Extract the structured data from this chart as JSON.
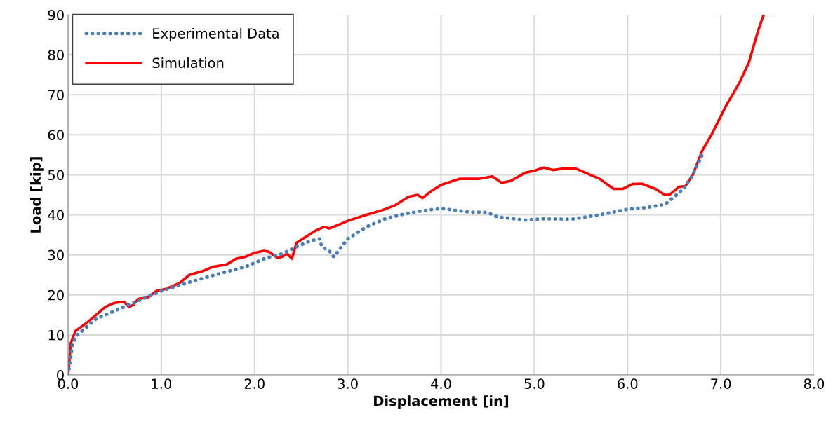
{
  "chart_data": {
    "type": "line",
    "xlabel": "Displacement [in]",
    "ylabel": "Load [kip]",
    "xlim": [
      0,
      8
    ],
    "ylim": [
      0,
      90
    ],
    "xticks": [
      {
        "value": 0,
        "label": "0.0"
      },
      {
        "value": 1,
        "label": "1.0"
      },
      {
        "value": 2,
        "label": "2.0"
      },
      {
        "value": 3,
        "label": "3.0"
      },
      {
        "value": 4,
        "label": "4.0"
      },
      {
        "value": 5,
        "label": "5.0"
      },
      {
        "value": 6,
        "label": "6.0"
      },
      {
        "value": 7,
        "label": "7.0"
      },
      {
        "value": 8,
        "label": "8.0"
      }
    ],
    "yticks": [
      0,
      10,
      20,
      30,
      40,
      50,
      60,
      70,
      80,
      90
    ],
    "grid": true,
    "legend": "top left",
    "series": [
      {
        "name": "Experimental Data",
        "color": "#4a7ebb",
        "line_style": "dotted",
        "x": [
          0,
          0.02,
          0.05,
          0.1,
          0.2,
          0.3,
          0.5,
          0.7,
          0.9,
          1.0,
          1.2,
          1.5,
          1.7,
          1.9,
          2.1,
          2.3,
          2.45,
          2.6,
          2.7,
          2.72,
          2.8,
          2.85,
          2.9,
          3.0,
          3.2,
          3.4,
          3.6,
          3.8,
          4.0,
          4.3,
          4.5,
          4.6,
          4.9,
          5.1,
          5.4,
          5.7,
          6.0,
          6.2,
          6.4,
          6.5,
          6.6,
          6.7,
          6.8
        ],
        "values": [
          0,
          3,
          8,
          10,
          12,
          14,
          16,
          18,
          20,
          21,
          22.5,
          24.5,
          25.8,
          27,
          29,
          30.3,
          32,
          33.5,
          34,
          32,
          31,
          29.5,
          31,
          34,
          37,
          39,
          40.2,
          41,
          41.6,
          40.7,
          40.6,
          39.5,
          38.7,
          39,
          38.9,
          40,
          41.4,
          41.8,
          42.6,
          44.5,
          46.5,
          50,
          55
        ]
      },
      {
        "name": "Simulation",
        "color": "#ff0000",
        "line_style": "solid",
        "x": [
          0,
          0.03,
          0.08,
          0.2,
          0.3,
          0.4,
          0.5,
          0.6,
          0.65,
          0.7,
          0.75,
          0.85,
          0.95,
          1.05,
          1.2,
          1.3,
          1.45,
          1.55,
          1.7,
          1.8,
          1.9,
          2.0,
          2.1,
          2.15,
          2.25,
          2.3,
          2.35,
          2.4,
          2.45,
          2.55,
          2.65,
          2.75,
          2.8,
          2.9,
          3.0,
          3.2,
          3.35,
          3.5,
          3.65,
          3.75,
          3.8,
          3.9,
          4.0,
          4.2,
          4.4,
          4.55,
          4.65,
          4.75,
          4.9,
          5.0,
          5.1,
          5.2,
          5.3,
          5.45,
          5.55,
          5.7,
          5.85,
          5.95,
          6.05,
          6.15,
          6.3,
          6.4,
          6.45,
          6.55,
          6.62,
          6.7,
          6.8,
          6.9,
          7.05,
          7.2,
          7.3,
          7.4,
          7.46
        ],
        "values": [
          0,
          8,
          11,
          13,
          15,
          17,
          18,
          18.3,
          17,
          17.5,
          19,
          19.3,
          21,
          21.5,
          23,
          25,
          26,
          27,
          27.6,
          29,
          29.5,
          30.5,
          31,
          30.8,
          29.2,
          29.6,
          30.3,
          29,
          33,
          34.5,
          36,
          37,
          36.6,
          37.5,
          38.5,
          40,
          41,
          42.3,
          44.5,
          45,
          44.2,
          46,
          47.5,
          49,
          49,
          49.6,
          48,
          48.5,
          50.5,
          51,
          51.8,
          51.2,
          51.5,
          51.5,
          50.5,
          49,
          46.5,
          46.5,
          47.7,
          47.8,
          46.5,
          45,
          45,
          47,
          47.2,
          50,
          56,
          60,
          67,
          73,
          78,
          86,
          90
        ]
      }
    ]
  }
}
